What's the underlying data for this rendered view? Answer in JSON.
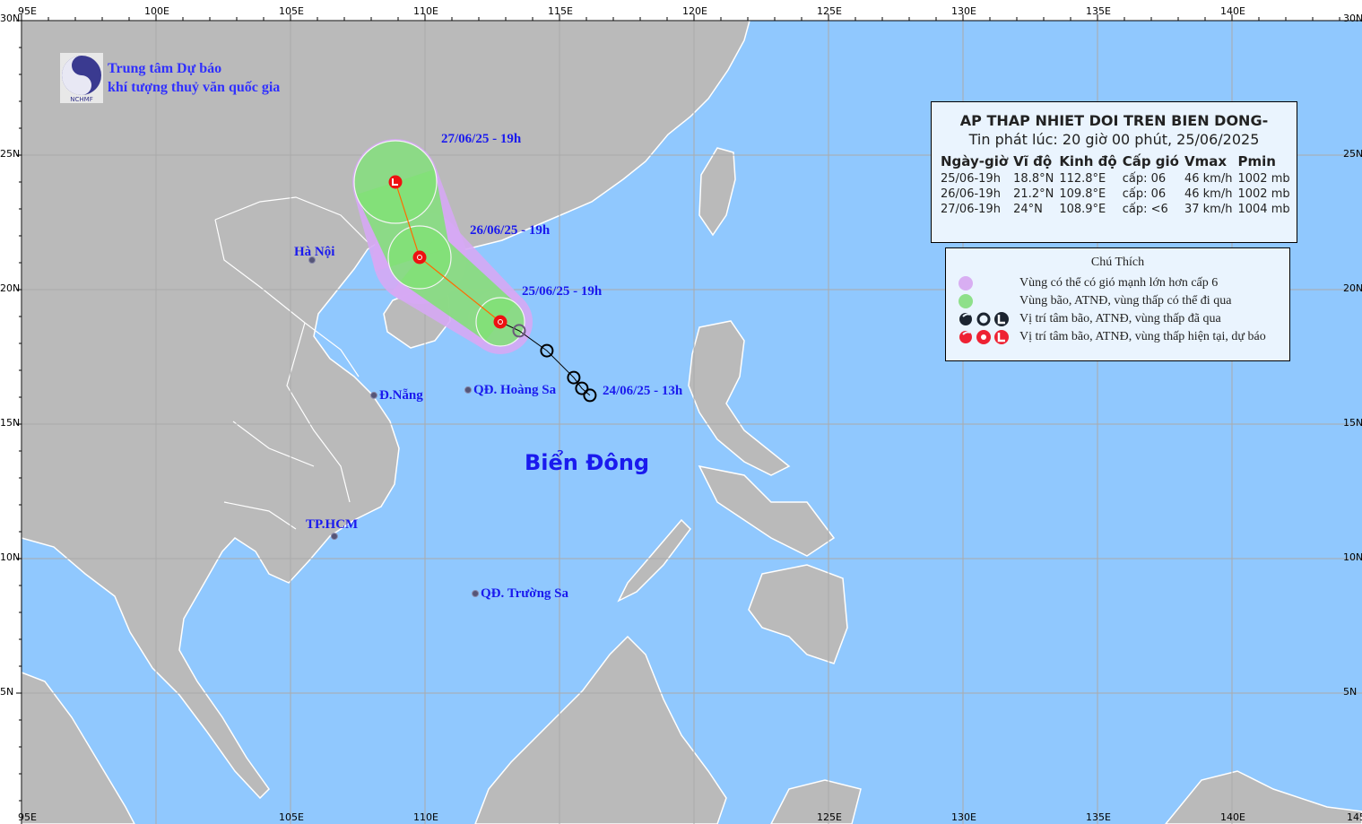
{
  "organization": {
    "line1": "Trung tâm Dự báo",
    "line2": "khí tượng thuỷ văn quốc gia",
    "logo_text": "NCHMF"
  },
  "axes": {
    "top_lon_labels": [
      "95E",
      "100E",
      "105E",
      "110E",
      "115E",
      "120E",
      "125E",
      "130E",
      "135E",
      "140E"
    ],
    "bottom_lon_labels": [
      "95E",
      "105E",
      "110E",
      "125E",
      "130E",
      "135E",
      "140E",
      "145E"
    ],
    "lat_labels": [
      "30N",
      "25N",
      "20N",
      "15N",
      "10N",
      "5N"
    ]
  },
  "sea_label": "Biển Đông",
  "places": [
    {
      "name": "Hà Nội",
      "lat": 21.1,
      "lon": 105.8
    },
    {
      "name": "Đ.Nẵng",
      "lat": 16.07,
      "lon": 108.1
    },
    {
      "name": "QĐ. Hoàng Sa",
      "lat": 16.27,
      "lon": 111.6
    },
    {
      "name": "TP.HCM",
      "lat": 10.83,
      "lon": 106.63
    },
    {
      "name": "QĐ. Trường Sa",
      "lat": 8.7,
      "lon": 111.87
    }
  ],
  "track_labels": [
    "27/06/25 - 19h",
    "26/06/25 - 19h",
    "25/06/25 - 19h",
    "24/06/25 - 13h"
  ],
  "past_track": [
    {
      "lat": 16.07,
      "lon": 116.13
    },
    {
      "lat": 16.33,
      "lon": 115.83
    },
    {
      "lat": 16.73,
      "lon": 115.53
    },
    {
      "lat": 17.73,
      "lon": 114.53
    },
    {
      "lat": 18.47,
      "lon": 113.5
    }
  ],
  "forecast_track": [
    {
      "lat": 18.8,
      "lon": 112.8,
      "symbol": "circle"
    },
    {
      "lat": 21.2,
      "lon": 109.8,
      "symbol": "circle"
    },
    {
      "lat": 24.0,
      "lon": 108.9,
      "symbol": "L"
    }
  ],
  "info": {
    "title": "AP THAP NHIET DOI TREN BIEN DONG-",
    "issued": "Tin phát lúc: 20 giờ 00 phút, 25/06/2025",
    "headers": [
      "Ngày-giờ",
      "Vĩ độ",
      "Kinh độ",
      "Cấp gió",
      "Vmax",
      "Pmin"
    ],
    "rows": [
      [
        "25/06-19h",
        "18.8°N",
        "112.8°E",
        "cấp: 06",
        "46 km/h",
        "1002 mb"
      ],
      [
        "26/06-19h",
        "21.2°N",
        "109.8°E",
        "cấp: 06",
        "46 km/h",
        "1002 mb"
      ],
      [
        "27/06-19h",
        "24°N",
        "108.9°E",
        "cấp: <6",
        "37 km/h",
        "1004 mb"
      ]
    ]
  },
  "legend": {
    "title": "Chú Thích",
    "items": [
      "Vùng có thể có gió mạnh lớn hơn cấp 6",
      "Vùng bão, ATNĐ, vùng thấp có thể đi qua",
      "Vị trí tâm bão, ATNĐ, vùng thấp đã qua",
      "Vị trí tâm bão, ATNĐ, vùng thấp hiện tại, dự báo"
    ]
  },
  "colors": {
    "sea": "#90c8fe",
    "land": "#bababa",
    "strong_wind_zone": "#c9a8f2",
    "track_zone": "#86e07e",
    "current_forecast_marker": "#ee2222",
    "past_marker": "#111111",
    "label_text": "#1a1aee"
  }
}
